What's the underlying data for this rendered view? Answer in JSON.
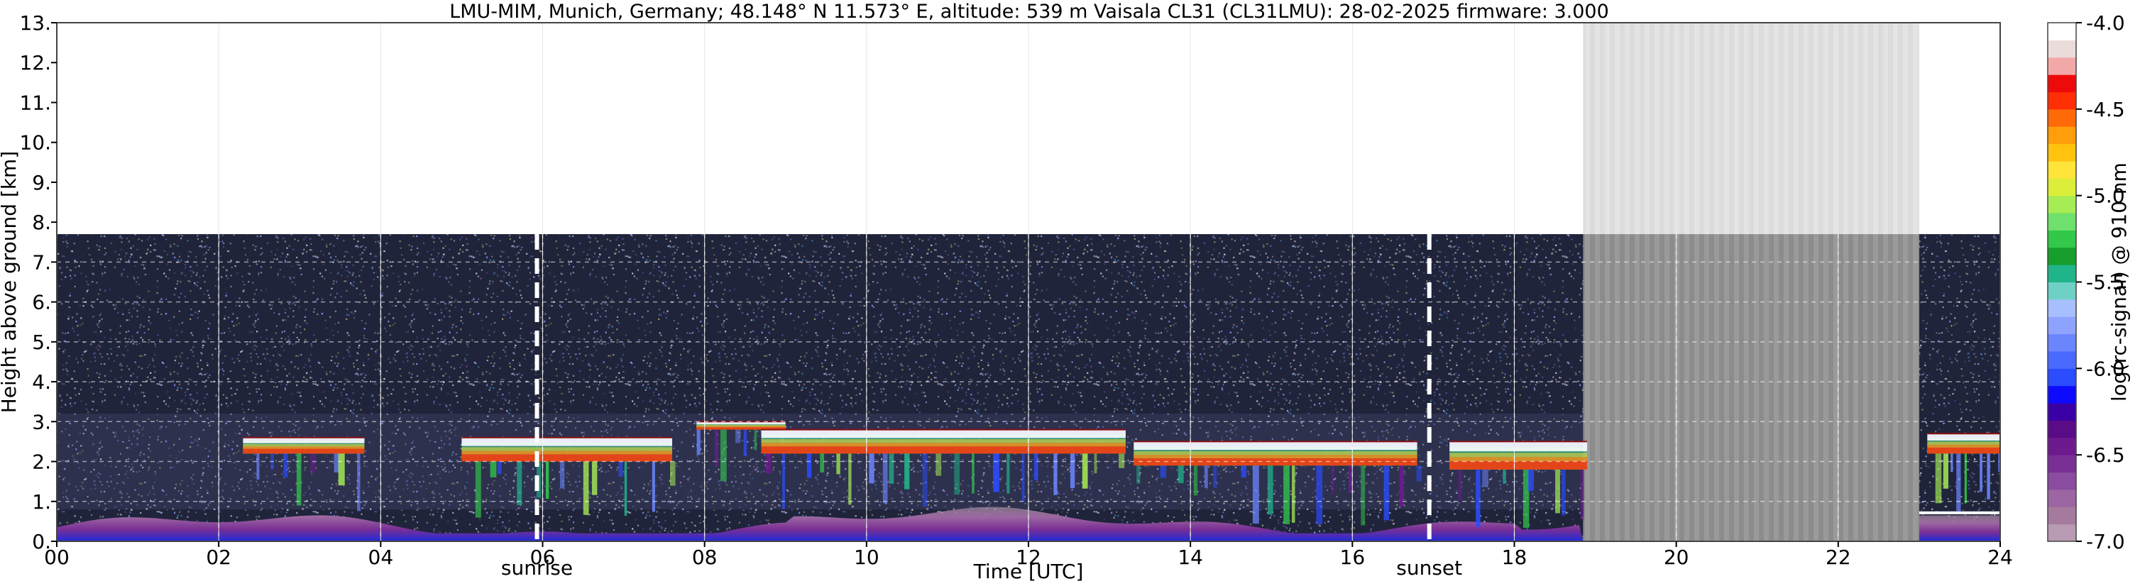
{
  "chart_data": {
    "type": "heatmap",
    "title": "LMU-MIM, Munich, Germany; 48.148° N 11.573° E, altitude: 539 m    Vaisala CL31 (CL31LMU): 28-02-2025    firmware: 3.000",
    "xlabel": "Time [UTC]",
    "ylabel": "Height above ground [km]",
    "xlim": [
      0,
      24
    ],
    "ylim": [
      0,
      13
    ],
    "x_ticks": [
      0,
      2,
      4,
      6,
      8,
      10,
      12,
      14,
      16,
      18,
      20,
      22,
      24
    ],
    "x_tick_labels": [
      "00",
      "02",
      "04",
      "06",
      "08",
      "10",
      "12",
      "14",
      "16",
      "18",
      "20",
      "22",
      "24"
    ],
    "y_ticks": [
      0,
      1,
      2,
      3,
      4,
      5,
      6,
      7,
      8,
      9,
      10,
      11,
      12,
      13
    ],
    "y_tick_labels": [
      "0.",
      "1.",
      "2.",
      "3.",
      "4.",
      "5.",
      "6.",
      "7.",
      "8.",
      "9.",
      "10.",
      "11.",
      "12.",
      "13."
    ],
    "grid": true,
    "data_top_height_km": 7.7,
    "sun_events": [
      {
        "label": "sunrise",
        "time_utc": 5.93
      },
      {
        "label": "sunset",
        "time_utc": 16.95
      }
    ],
    "missing_data_interval_utc": [
      18.85,
      23.0
    ],
    "cloud_layers": [
      {
        "start": 2.3,
        "end": 3.8,
        "base_km": 2.2,
        "top_km": 2.6
      },
      {
        "start": 5.0,
        "end": 7.6,
        "base_km": 2.0,
        "top_km": 2.6
      },
      {
        "start": 7.9,
        "end": 9.0,
        "base_km": 2.8,
        "top_km": 3.0
      },
      {
        "start": 8.7,
        "end": 13.2,
        "base_km": 2.2,
        "top_km": 2.8
      },
      {
        "start": 13.3,
        "end": 16.8,
        "base_km": 1.9,
        "top_km": 2.5
      },
      {
        "start": 17.2,
        "end": 18.9,
        "base_km": 1.8,
        "top_km": 2.5
      },
      {
        "start": 23.1,
        "end": 24.0,
        "base_km": 2.2,
        "top_km": 2.7
      }
    ],
    "colorbar": {
      "label": "log(rc-signal) @ 910 nm",
      "min": -7.0,
      "max": -4.0,
      "tick_values": [
        -4.0,
        -4.5,
        -5.0,
        -5.5,
        -6.0,
        -6.5,
        -7.0
      ],
      "tick_labels": [
        "-4.0",
        "-4.5",
        "-5.0",
        "-5.5",
        "-6.0",
        "-6.5",
        "-7.0"
      ],
      "colors_low_to_high": [
        "#b89bb3",
        "#a57a9e",
        "#9b66a1",
        "#8a4c9e",
        "#7a2f95",
        "#6e1a8f",
        "#5a0b86",
        "#3a00a6",
        "#0e09ff",
        "#2b4cff",
        "#4a6aff",
        "#6b85ff",
        "#8ea2ff",
        "#a7bfff",
        "#6fd0c6",
        "#20b48a",
        "#169e2d",
        "#32c84a",
        "#6fe06b",
        "#a6ec55",
        "#dcee3a",
        "#ffe43a",
        "#ffc20f",
        "#ff9e0a",
        "#ff6a08",
        "#ff2e05",
        "#ee0a0a",
        "#f3a8a8",
        "#ebdcdc",
        "#ffffff"
      ]
    }
  }
}
